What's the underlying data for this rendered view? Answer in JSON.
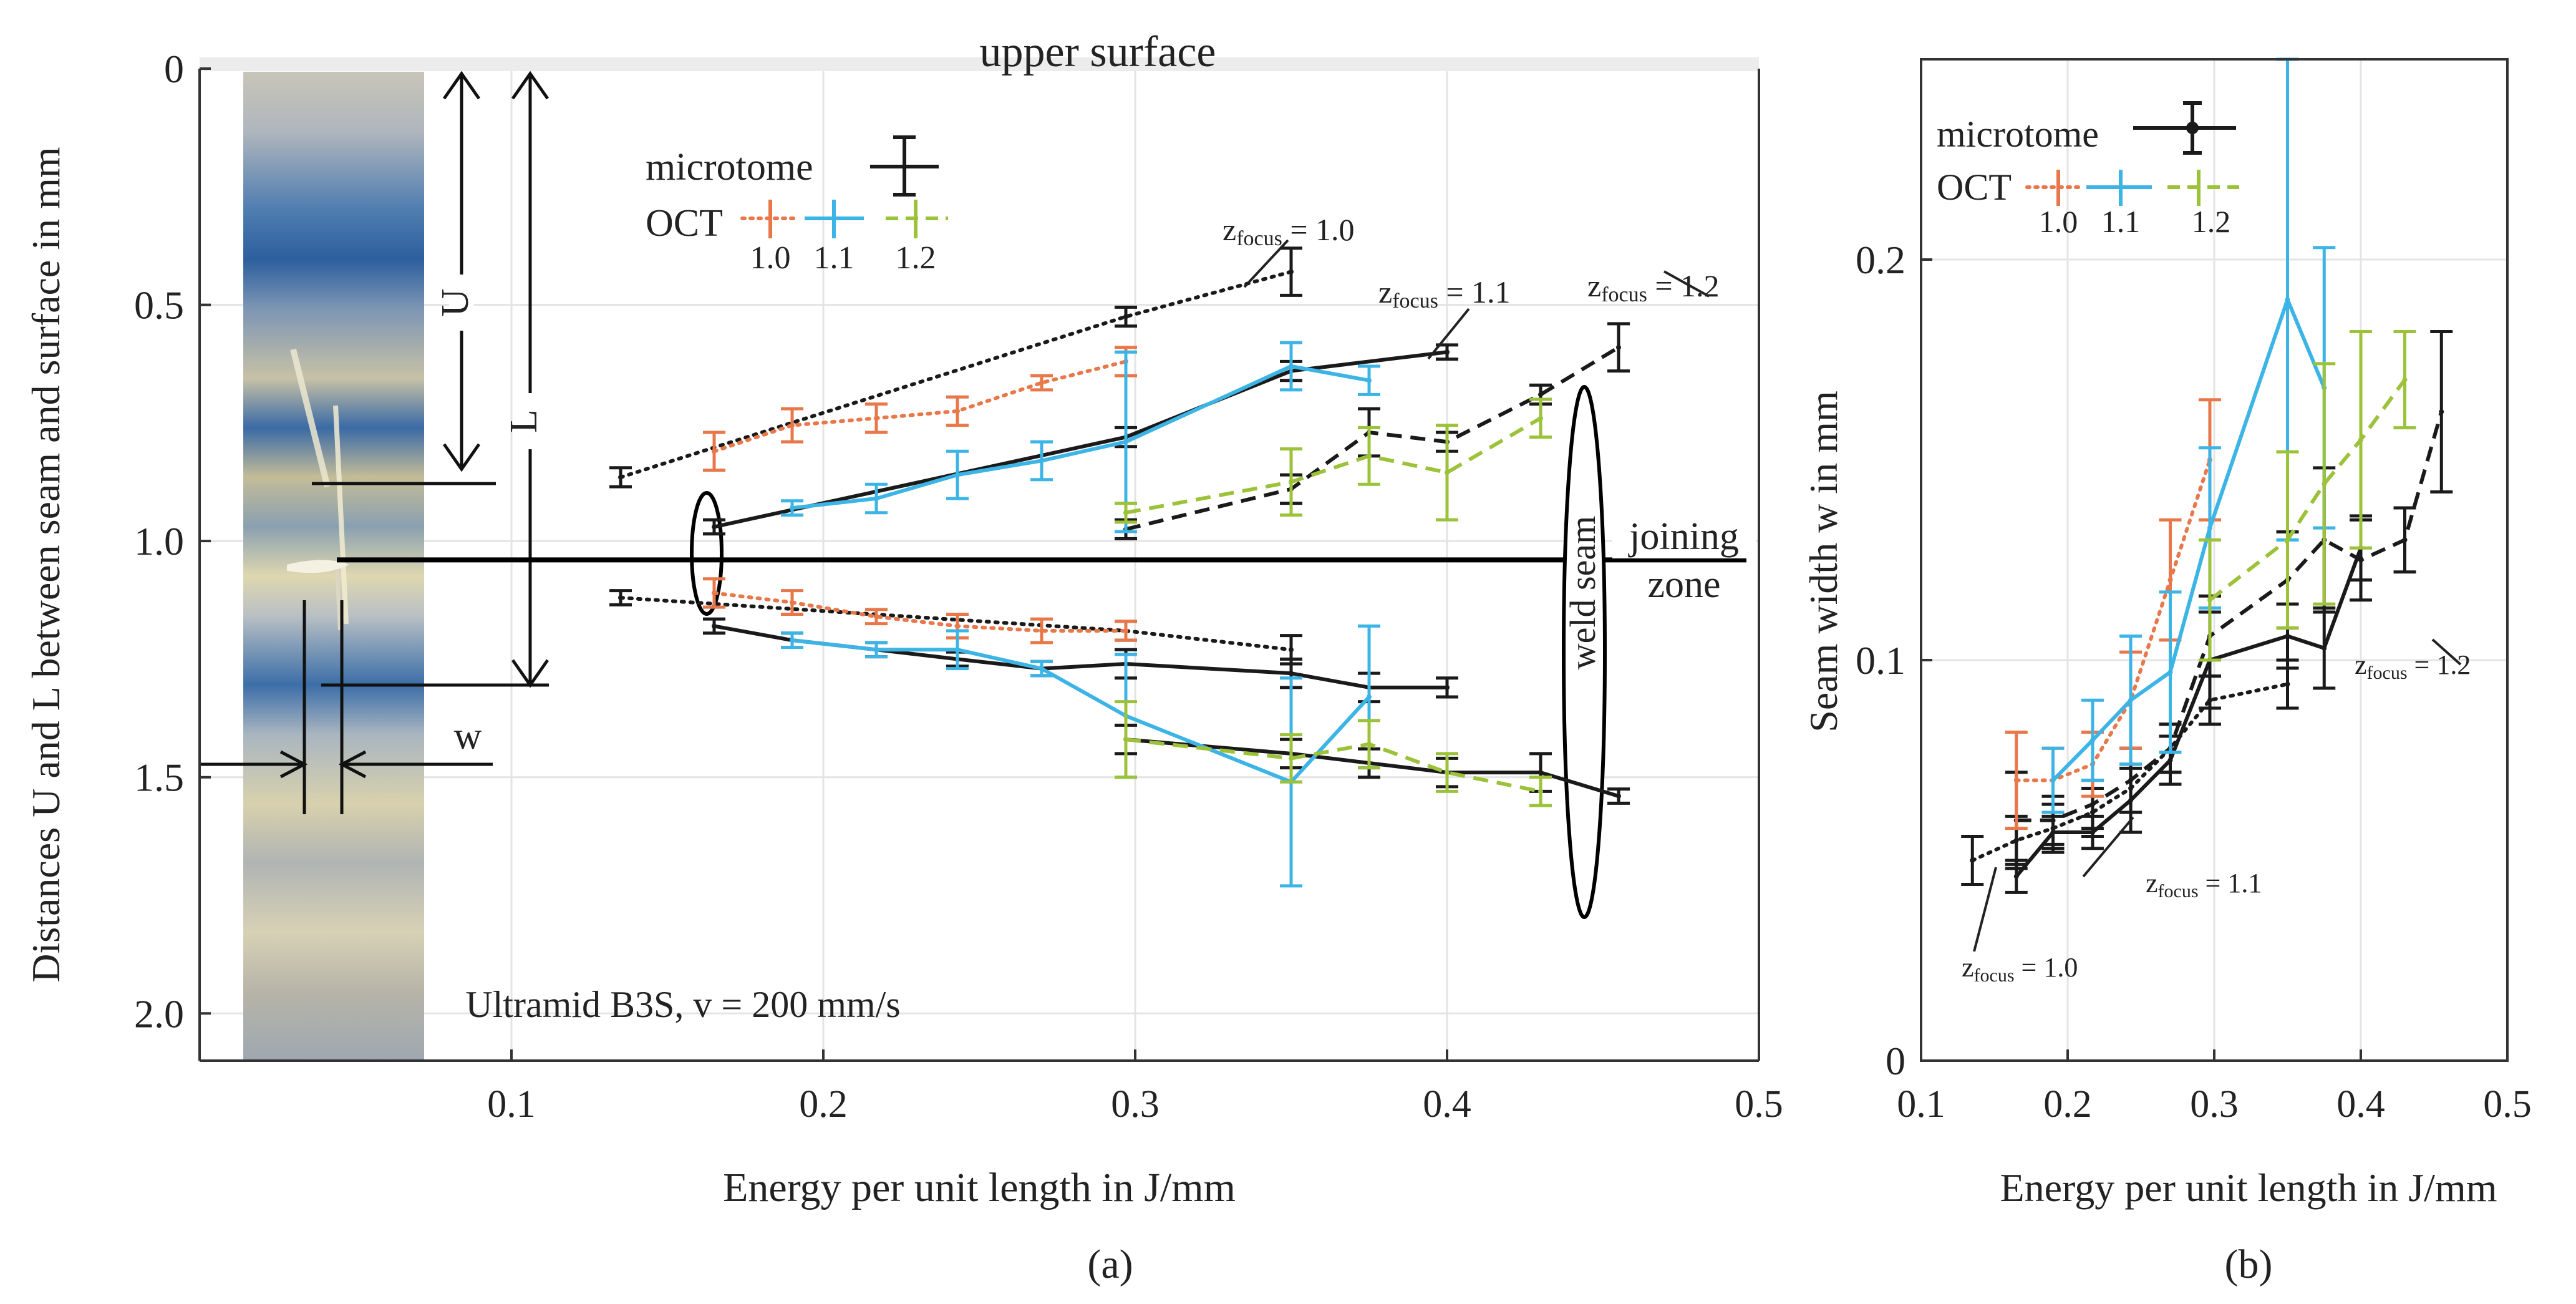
{
  "chart_data": [
    {
      "type": "line",
      "panel_label": "(a)",
      "title": "",
      "xlabel": "Energy per unit length in J/mm",
      "ylabel": "Distances U and L between seam and surface in mm",
      "xlim": [
        0.0,
        0.5
      ],
      "ylim": [
        0.0,
        2.1
      ],
      "y_inverted": true,
      "xticks": [
        "0.1",
        "0.2",
        "0.3",
        "0.4",
        "0.5"
      ],
      "xtick_values": [
        0.1,
        0.2,
        0.3,
        0.4,
        0.5
      ],
      "yticks": [
        "0",
        "0.5",
        "1.0",
        "1.5",
        "2.0"
      ],
      "ytick_values": [
        0.0,
        0.5,
        1.0,
        1.5,
        2.0
      ],
      "grid": true,
      "annotations": {
        "upper_surface": "upper surface",
        "joining_zone_1": "joining",
        "joining_zone_2": "zone",
        "weld_seam": "weld seam",
        "material": "Ultramid B3S, v = 200 mm/s",
        "dim_U": "U",
        "dim_L": "L",
        "dim_w": "w",
        "zfocus_prefix": "z",
        "zfocus_sub": "focus",
        "z10": " = 1.0",
        "z11": " = 1.1",
        "z12": " = 1.2"
      },
      "legend": {
        "microtome": "microtome",
        "oct": "OCT",
        "focus_labels": [
          "1.0",
          "1.1",
          "1.2"
        ]
      },
      "joining_line_y": 1.04,
      "series": [
        {
          "name": "microtome (z = 1.0) upper",
          "color": "#1a1a1a",
          "style": "dotted",
          "x": [
            0.135,
            0.297,
            0.35
          ],
          "y": [
            0.865,
            0.525,
            0.43
          ],
          "err": [
            0.02,
            0.02,
            0.05
          ]
        },
        {
          "name": "microtome (z = 1.1) upper",
          "color": "#1a1a1a",
          "style": "solid",
          "x": [
            0.165,
            0.297,
            0.35,
            0.4
          ],
          "y": [
            0.97,
            0.78,
            0.64,
            0.6
          ],
          "err": [
            0.015,
            0.02,
            0.02,
            0.015
          ]
        },
        {
          "name": "microtome (z = 1.2) upper",
          "color": "#1a1a1a",
          "style": "dashed",
          "x": [
            0.297,
            0.35,
            0.375,
            0.4,
            0.43,
            0.455
          ],
          "y": [
            0.975,
            0.89,
            0.77,
            0.79,
            0.69,
            0.59
          ],
          "err": [
            0.02,
            0.03,
            0.05,
            0.02,
            0.02,
            0.05
          ]
        },
        {
          "name": "OCT 1.0 upper",
          "color": "#e8784a",
          "style": "dotted",
          "x": [
            0.165,
            0.19,
            0.217,
            0.243,
            0.27,
            0.297
          ],
          "y": [
            0.81,
            0.755,
            0.74,
            0.725,
            0.665,
            0.62
          ],
          "err": [
            0.04,
            0.035,
            0.03,
            0.03,
            0.015,
            0.03
          ]
        },
        {
          "name": "OCT 1.1 upper",
          "color": "#3cb4e6",
          "style": "solid",
          "x": [
            0.19,
            0.217,
            0.243,
            0.27,
            0.297,
            0.35,
            0.375
          ],
          "y": [
            0.93,
            0.91,
            0.86,
            0.83,
            0.79,
            0.63,
            0.66
          ],
          "err": [
            0.015,
            0.03,
            0.05,
            0.04,
            0.19,
            0.05,
            0.03
          ]
        },
        {
          "name": "OCT 1.2 upper",
          "color": "#9cc23a",
          "style": "dashed",
          "x": [
            0.297,
            0.35,
            0.375,
            0.4,
            0.43
          ],
          "y": [
            0.94,
            0.875,
            0.82,
            0.855,
            0.74
          ],
          "err": [
            0.02,
            0.07,
            0.06,
            0.1,
            0.04
          ]
        },
        {
          "name": "microtome (z = 1.0) lower",
          "color": "#1a1a1a",
          "style": "dotted",
          "x": [
            0.135,
            0.297,
            0.35
          ],
          "y": [
            1.12,
            1.19,
            1.23
          ],
          "err": [
            0.015,
            0.02,
            0.03
          ]
        },
        {
          "name": "microtome (z = 1.1) lower",
          "color": "#1a1a1a",
          "style": "solid",
          "x": [
            0.165,
            0.19,
            0.217,
            0.243,
            0.27,
            0.297,
            0.35,
            0.375,
            0.4
          ],
          "y": [
            1.18,
            1.21,
            1.23,
            1.25,
            1.27,
            1.26,
            1.28,
            1.31,
            1.31
          ],
          "err": [
            0.015,
            0.015,
            0.015,
            0.015,
            0.015,
            0.03,
            0.03,
            0.03,
            0.02
          ]
        },
        {
          "name": "microtome (z = 1.2) lower",
          "color": "#1a1a1a",
          "style": "solid",
          "x": [
            0.297,
            0.35,
            0.375,
            0.4,
            0.43,
            0.455
          ],
          "y": [
            1.42,
            1.45,
            1.47,
            1.49,
            1.49,
            1.54
          ],
          "err": [
            0.03,
            0.03,
            0.03,
            0.03,
            0.04,
            0.015
          ]
        },
        {
          "name": "OCT 1.0 lower",
          "color": "#e8784a",
          "style": "dotted",
          "x": [
            0.165,
            0.19,
            0.217,
            0.243,
            0.27,
            0.297
          ],
          "y": [
            1.11,
            1.13,
            1.16,
            1.18,
            1.19,
            1.19
          ],
          "err": [
            0.03,
            0.025,
            0.015,
            0.025,
            0.025,
            0.02
          ]
        },
        {
          "name": "OCT 1.1 lower",
          "color": "#3cb4e6",
          "style": "solid",
          "x": [
            0.19,
            0.217,
            0.243,
            0.27,
            0.297,
            0.35,
            0.375
          ],
          "y": [
            1.21,
            1.23,
            1.23,
            1.27,
            1.37,
            1.51,
            1.33
          ],
          "err": [
            0.015,
            0.015,
            0.04,
            0.015,
            0.13,
            0.22,
            0.15
          ]
        },
        {
          "name": "OCT 1.2 lower",
          "color": "#9cc23a",
          "style": "dashed",
          "x": [
            0.297,
            0.35,
            0.375,
            0.4,
            0.43
          ],
          "y": [
            1.42,
            1.46,
            1.43,
            1.49,
            1.53
          ],
          "err": [
            0.08,
            0.05,
            0.05,
            0.04,
            0.03
          ]
        }
      ]
    },
    {
      "type": "line",
      "panel_label": "(b)",
      "title": "",
      "xlabel": "Energy per unit length in J/mm",
      "ylabel": "Seam width w in mm",
      "xlim": [
        0.1,
        0.5
      ],
      "ylim": [
        0.0,
        0.25
      ],
      "xticks": [
        "0.1",
        "0.2",
        "0.3",
        "0.4",
        "0.5"
      ],
      "xtick_values": [
        0.1,
        0.2,
        0.3,
        0.4,
        0.5
      ],
      "yticks": [
        "0",
        "0.1",
        "0.2"
      ],
      "ytick_values": [
        0.0,
        0.1,
        0.2
      ],
      "grid": true,
      "annotations": {
        "zfocus_prefix": "z",
        "zfocus_sub": "focus",
        "z10": " = 1.0",
        "z11": " = 1.1",
        "z12": " = 1.2"
      },
      "legend": {
        "microtome": "microtome",
        "oct": "OCT",
        "focus_labels": [
          "1.0",
          "1.1",
          "1.2"
        ]
      },
      "series": [
        {
          "name": "microtome z = 1.0",
          "color": "#1a1a1a",
          "style": "dotted",
          "x": [
            0.135,
            0.165,
            0.19,
            0.217,
            0.243,
            0.27,
            0.297,
            0.35
          ],
          "y": [
            0.05,
            0.055,
            0.058,
            0.062,
            0.068,
            0.078,
            0.09,
            0.094
          ],
          "err": [
            0.006,
            0.006,
            0.006,
            0.006,
            0.006,
            0.006,
            0.006,
            0.006
          ]
        },
        {
          "name": "microtome z = 1.1",
          "color": "#1a1a1a",
          "style": "solid",
          "x": [
            0.165,
            0.19,
            0.217,
            0.243,
            0.27,
            0.297,
            0.35,
            0.375,
            0.4
          ],
          "y": [
            0.046,
            0.057,
            0.057,
            0.065,
            0.075,
            0.1,
            0.106,
            0.103,
            0.128
          ],
          "err": [
            0.004,
            0.004,
            0.004,
            0.008,
            0.006,
            0.012,
            0.008,
            0.01,
            0.008
          ]
        },
        {
          "name": "microtome z = 1.2",
          "color": "#1a1a1a",
          "style": "dashed",
          "x": [
            0.165,
            0.19,
            0.217,
            0.243,
            0.27,
            0.297,
            0.35,
            0.375,
            0.4,
            0.43,
            0.455
          ],
          "y": [
            0.06,
            0.06,
            0.064,
            0.07,
            0.078,
            0.106,
            0.12,
            0.13,
            0.125,
            0.13,
            0.162
          ],
          "err": [
            0.012,
            0.006,
            0.006,
            0.008,
            0.006,
            0.01,
            0.012,
            0.018,
            0.01,
            0.008,
            0.02
          ]
        },
        {
          "name": "OCT 1.0",
          "color": "#e8784a",
          "style": "dotted",
          "x": [
            0.165,
            0.19,
            0.217,
            0.243,
            0.27,
            0.297
          ],
          "y": [
            0.07,
            0.07,
            0.074,
            0.09,
            0.12,
            0.15
          ],
          "err": [
            0.012,
            0.008,
            0.008,
            0.012,
            0.015,
            0.015
          ]
        },
        {
          "name": "OCT 1.1",
          "color": "#3cb4e6",
          "style": "solid",
          "x": [
            0.19,
            0.217,
            0.243,
            0.27,
            0.297,
            0.35,
            0.375
          ],
          "y": [
            0.07,
            0.08,
            0.09,
            0.097,
            0.133,
            0.19,
            0.168
          ],
          "err": [
            0.008,
            0.01,
            0.016,
            0.02,
            0.02,
            0.06,
            0.035
          ]
        },
        {
          "name": "OCT 1.2",
          "color": "#9cc23a",
          "style": "dashed",
          "x": [
            0.297,
            0.35,
            0.375,
            0.4,
            0.43
          ],
          "y": [
            0.115,
            0.13,
            0.144,
            0.155,
            0.17
          ],
          "err": [
            0.015,
            0.022,
            0.03,
            0.027,
            0.012
          ]
        }
      ]
    }
  ]
}
